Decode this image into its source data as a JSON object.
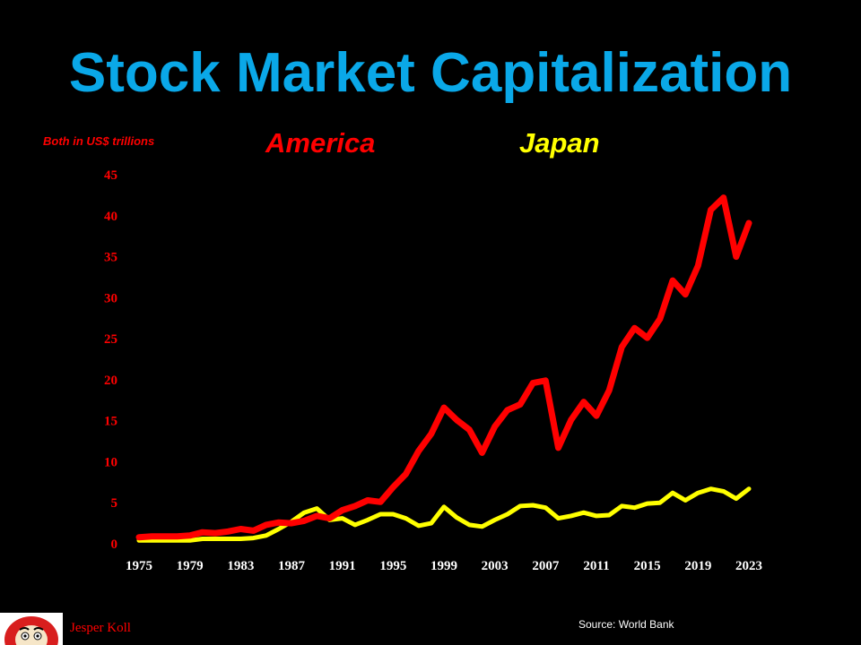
{
  "colors": {
    "title": "#0AA8E8",
    "america": "#FF0000",
    "japan": "#FFFF00",
    "axis_text": "#FF0000",
    "background": "#000000"
  },
  "units_label": "Both in US$ trillions",
  "source": "Source: World Bank",
  "author": "Jesper Koll",
  "logo_icon": "daruma-doll-icon",
  "chart_data": {
    "type": "line",
    "title": "Stock Market Capitalization",
    "xlabel": "",
    "ylabel": "Both in US$ trillions",
    "ylim": [
      0,
      45
    ],
    "yticks": [
      0,
      5,
      10,
      15,
      20,
      25,
      30,
      35,
      40,
      45
    ],
    "xticks": [
      1975,
      1979,
      1983,
      1987,
      1991,
      1995,
      1999,
      2003,
      2007,
      2011,
      2015,
      2019,
      2023
    ],
    "grid": false,
    "legend": "top",
    "x": [
      1975,
      1976,
      1977,
      1978,
      1979,
      1980,
      1981,
      1982,
      1983,
      1984,
      1985,
      1986,
      1987,
      1988,
      1989,
      1990,
      1991,
      1992,
      1993,
      1994,
      1995,
      1996,
      1997,
      1998,
      1999,
      2000,
      2001,
      2002,
      2003,
      2004,
      2005,
      2006,
      2007,
      2008,
      2009,
      2010,
      2011,
      2012,
      2013,
      2014,
      2015,
      2016,
      2017,
      2018,
      2019,
      2020,
      2021,
      2022,
      2023
    ],
    "series": [
      {
        "name": "America",
        "color": "#FF0000",
        "values": [
          0.8,
          0.9,
          0.9,
          0.9,
          1.0,
          1.4,
          1.3,
          1.5,
          1.8,
          1.6,
          2.3,
          2.6,
          2.5,
          2.8,
          3.4,
          3.1,
          4.1,
          4.6,
          5.3,
          5.1,
          6.9,
          8.5,
          11.3,
          13.4,
          16.6,
          15.1,
          13.9,
          11.1,
          14.3,
          16.3,
          17.0,
          19.6,
          19.9,
          11.7,
          15.1,
          17.3,
          15.6,
          18.7,
          24.0,
          26.3,
          25.1,
          27.4,
          32.1,
          30.4,
          33.9,
          40.7,
          42.2,
          35.0,
          39.1
        ]
      },
      {
        "name": "Japan",
        "color": "#FFFF00",
        "values": [
          0.4,
          0.4,
          0.4,
          0.4,
          0.4,
          0.6,
          0.6,
          0.6,
          0.6,
          0.7,
          1.0,
          1.8,
          2.7,
          3.8,
          4.3,
          2.9,
          3.1,
          2.3,
          2.9,
          3.6,
          3.6,
          3.1,
          2.2,
          2.5,
          4.5,
          3.2,
          2.3,
          2.1,
          2.9,
          3.6,
          4.6,
          4.7,
          4.4,
          3.1,
          3.4,
          3.8,
          3.4,
          3.5,
          4.6,
          4.4,
          4.9,
          5.0,
          6.2,
          5.3,
          6.2,
          6.7,
          6.4,
          5.5,
          6.7
        ]
      }
    ]
  }
}
